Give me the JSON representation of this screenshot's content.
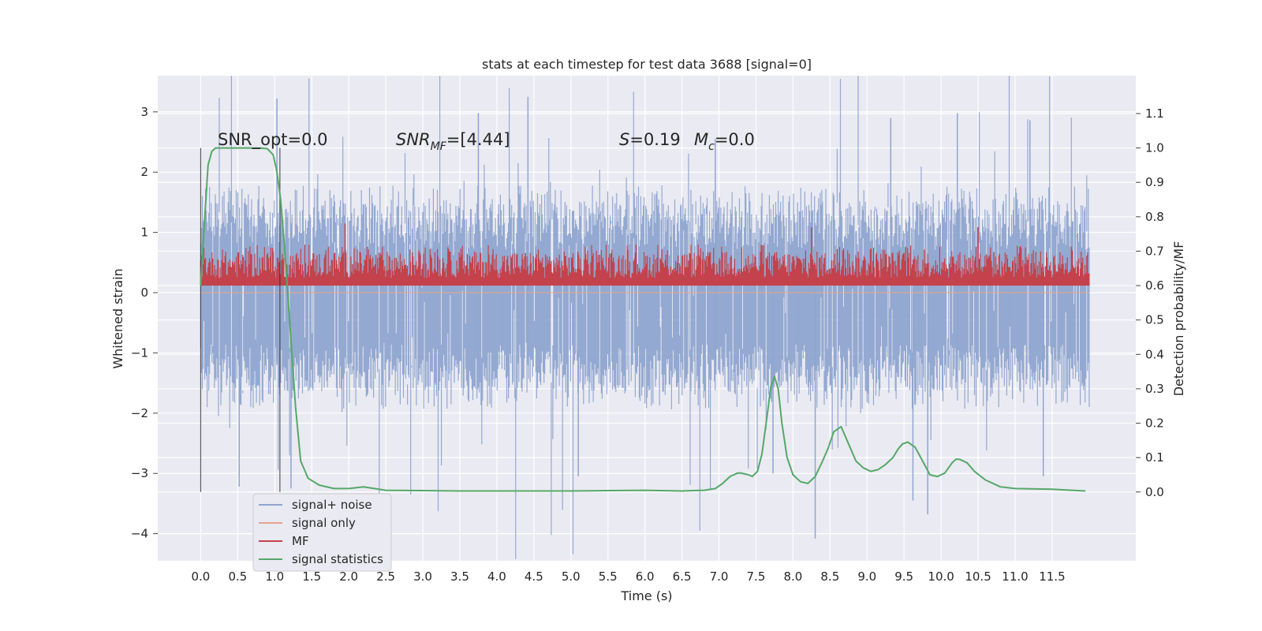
{
  "chart_data": {
    "type": "line",
    "title": "stats at each timestep for test data 3688 [signal=0]",
    "xlabel": "Time (s)",
    "ylabel": "Whitened strain",
    "y2label": "Detection probability/MF",
    "xlim": [
      -0.58,
      12.63
    ],
    "ylim": [
      -4.45,
      3.6
    ],
    "y2lim": [
      -0.2,
      1.21
    ],
    "xticks": [
      "0.0",
      "0.5",
      "1.0",
      "1.5",
      "2.0",
      "2.5",
      "3.0",
      "3.5",
      "4.0",
      "4.5",
      "5.0",
      "5.5",
      "6.0",
      "6.5",
      "7.0",
      "7.5",
      "8.0",
      "8.5",
      "9.0",
      "9.5",
      "10.0",
      "10.5",
      "11.0",
      "11.5"
    ],
    "yticks": [
      "3",
      "2",
      "1",
      "0",
      "−1",
      "−2",
      "−3",
      "−4"
    ],
    "y2ticks": [
      "1.1",
      "1.0",
      "0.9",
      "0.8",
      "0.7",
      "0.6",
      "0.5",
      "0.4",
      "0.3",
      "0.2",
      "0.1",
      "0.0"
    ],
    "grid": true,
    "legend_position": "lower-left",
    "annotations": [
      {
        "text": "SNR_opt=0.0"
      },
      {
        "base": "SNR",
        "sub": "MF",
        "rest": "=[4.44]"
      },
      {
        "base": "S",
        "rest": "=0.19"
      },
      {
        "base": "M",
        "sub": "c",
        "rest": "=0.0"
      }
    ],
    "vlines": [
      0.0,
      1.07
    ],
    "series": [
      {
        "name": "signal+ noise",
        "color": "#8fa5cf",
        "axis": "left",
        "x_range": [
          0.0,
          12.0
        ],
        "typical_band": [
          -1.5,
          1.35
        ],
        "extremes": [
          {
            "x": 1.03,
            "y": 3.22
          },
          {
            "x": 4.42,
            "y": 3.25
          },
          {
            "x": 8.3,
            "y": -4.08
          },
          {
            "x": 9.82,
            "y": -3.68
          },
          {
            "x": 7.73,
            "y": -3.0
          },
          {
            "x": 9.62,
            "y": -3.45
          },
          {
            "x": 0.52,
            "y": -3.22
          },
          {
            "x": 1.22,
            "y": -3.25
          },
          {
            "x": 11.38,
            "y": -3.05
          },
          {
            "x": 3.75,
            "y": 2.98
          },
          {
            "x": 11.2,
            "y": 2.86
          },
          {
            "x": 9.32,
            "y": 2.9
          },
          {
            "x": 10.22,
            "y": 2.98
          },
          {
            "x": 6.95,
            "y": 2.55
          },
          {
            "x": 5.1,
            "y": -3.05
          }
        ]
      },
      {
        "name": "signal only",
        "color": "#e5a58c",
        "axis": "left",
        "values": [
          0.0,
          0.0
        ]
      },
      {
        "name": "MF",
        "color": "#c4424b",
        "axis": "right",
        "x_range": [
          0.0,
          12.0
        ],
        "typical_band": [
          0.58,
          0.7
        ],
        "extremes": [
          {
            "x": 1.95,
            "y": 0.78
          },
          {
            "x": 8.25,
            "y": 0.77
          },
          {
            "x": 10.5,
            "y": 0.77
          }
        ]
      },
      {
        "name": "signal statistics",
        "color": "#55a868",
        "axis": "right",
        "x": [
          0.0,
          0.05,
          0.1,
          0.15,
          0.2,
          0.3,
          0.5,
          0.8,
          0.9,
          0.98,
          1.03,
          1.08,
          1.13,
          1.2,
          1.28,
          1.35,
          1.45,
          1.6,
          1.8,
          2.0,
          2.2,
          2.5,
          3.0,
          3.5,
          4.0,
          5.0,
          5.5,
          6.0,
          6.5,
          6.8,
          6.95,
          7.05,
          7.15,
          7.25,
          7.3,
          7.4,
          7.45,
          7.52,
          7.58,
          7.65,
          7.7,
          7.75,
          7.8,
          7.85,
          7.92,
          8.0,
          8.1,
          8.2,
          8.3,
          8.4,
          8.48,
          8.55,
          8.65,
          8.75,
          8.85,
          8.95,
          9.05,
          9.15,
          9.25,
          9.35,
          9.42,
          9.48,
          9.55,
          9.65,
          9.75,
          9.85,
          9.95,
          10.05,
          10.15,
          10.2,
          10.25,
          10.35,
          10.45,
          10.6,
          10.8,
          11.0,
          11.5,
          11.95
        ],
        "y": [
          0.6,
          0.78,
          0.95,
          0.99,
          1.0,
          1.0,
          1.0,
          1.0,
          0.998,
          0.98,
          0.93,
          0.85,
          0.72,
          0.5,
          0.25,
          0.09,
          0.04,
          0.02,
          0.01,
          0.01,
          0.015,
          0.005,
          0.004,
          0.003,
          0.003,
          0.003,
          0.004,
          0.005,
          0.003,
          0.005,
          0.01,
          0.025,
          0.045,
          0.055,
          0.055,
          0.05,
          0.045,
          0.06,
          0.11,
          0.22,
          0.305,
          0.335,
          0.3,
          0.2,
          0.1,
          0.05,
          0.03,
          0.025,
          0.045,
          0.09,
          0.13,
          0.175,
          0.19,
          0.14,
          0.09,
          0.07,
          0.06,
          0.065,
          0.08,
          0.1,
          0.125,
          0.14,
          0.145,
          0.13,
          0.09,
          0.05,
          0.045,
          0.055,
          0.085,
          0.095,
          0.095,
          0.085,
          0.06,
          0.035,
          0.015,
          0.01,
          0.008,
          0.003
        ]
      }
    ]
  }
}
